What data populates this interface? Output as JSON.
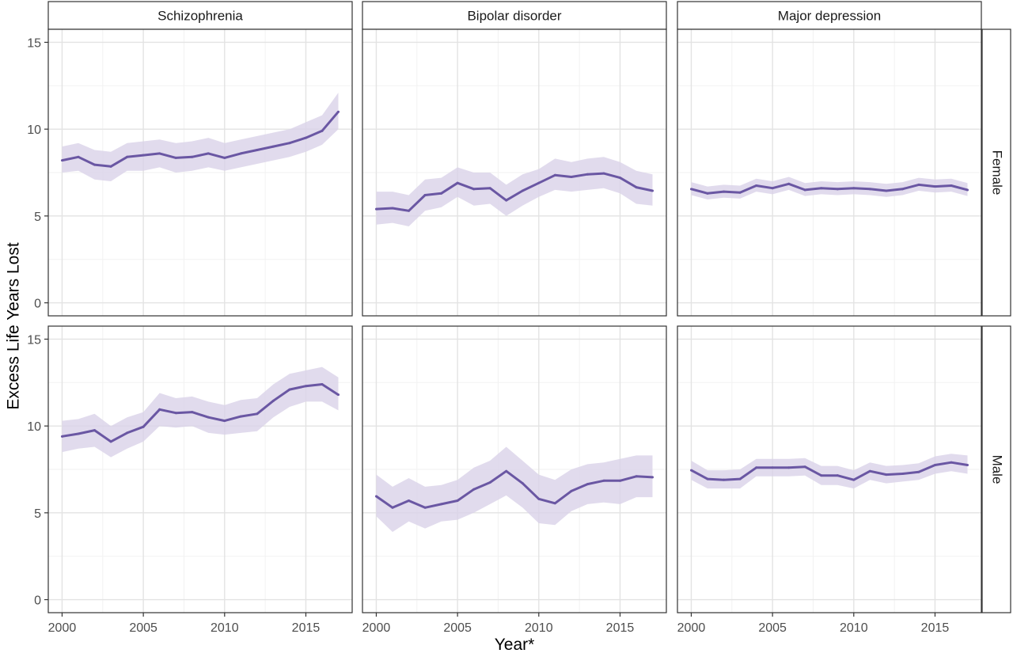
{
  "chart_data": {
    "type": "line",
    "xlabel": "Year*",
    "ylabel": "Excess Life Years Lost",
    "xlim": [
      2000,
      2017
    ],
    "ylim": [
      0,
      15
    ],
    "x_ticks": [
      "2000",
      "2005",
      "2010",
      "2015"
    ],
    "y_ticks": [
      "0",
      "5",
      "10",
      "15"
    ],
    "grid": true,
    "legend": "none",
    "colors": {
      "line": "#6a57a3",
      "band": "#d9d2e8"
    },
    "columns": [
      "Schizophrenia",
      "Bipolar disorder",
      "Major depression"
    ],
    "rows": [
      "Female",
      "Male"
    ],
    "x": [
      2000,
      2001,
      2002,
      2003,
      2004,
      2005,
      2006,
      2007,
      2008,
      2009,
      2010,
      2011,
      2012,
      2013,
      2014,
      2015,
      2016,
      2017
    ],
    "panels": [
      {
        "column": "Schizophrenia",
        "row": "Female",
        "values": [
          8.2,
          8.4,
          7.95,
          7.85,
          8.4,
          8.5,
          8.6,
          8.35,
          8.4,
          8.6,
          8.35,
          8.6,
          8.8,
          9.0,
          9.2,
          9.5,
          9.9,
          11.0
        ],
        "lower": [
          7.5,
          7.6,
          7.1,
          7.0,
          7.6,
          7.6,
          7.8,
          7.5,
          7.6,
          7.8,
          7.6,
          7.8,
          8.0,
          8.2,
          8.4,
          8.7,
          9.1,
          10.0
        ],
        "upper": [
          9.0,
          9.2,
          8.8,
          8.7,
          9.2,
          9.3,
          9.4,
          9.2,
          9.3,
          9.5,
          9.2,
          9.4,
          9.6,
          9.8,
          10.0,
          10.4,
          10.8,
          12.1
        ]
      },
      {
        "column": "Bipolar disorder",
        "row": "Female",
        "values": [
          5.4,
          5.45,
          5.3,
          6.2,
          6.3,
          6.9,
          6.55,
          6.6,
          5.9,
          6.45,
          6.9,
          7.35,
          7.25,
          7.4,
          7.45,
          7.2,
          6.65,
          6.45
        ],
        "lower": [
          4.5,
          4.6,
          4.4,
          5.3,
          5.5,
          6.1,
          5.6,
          5.7,
          5.0,
          5.6,
          6.1,
          6.5,
          6.4,
          6.5,
          6.6,
          6.3,
          5.7,
          5.6
        ],
        "upper": [
          6.4,
          6.4,
          6.2,
          7.1,
          7.2,
          7.8,
          7.5,
          7.5,
          6.8,
          7.4,
          7.7,
          8.3,
          8.1,
          8.3,
          8.4,
          8.1,
          7.6,
          7.4
        ]
      },
      {
        "column": "Major depression",
        "row": "Female",
        "values": [
          6.55,
          6.3,
          6.4,
          6.35,
          6.75,
          6.6,
          6.85,
          6.5,
          6.6,
          6.55,
          6.6,
          6.55,
          6.45,
          6.55,
          6.8,
          6.7,
          6.75,
          6.5
        ],
        "lower": [
          6.2,
          5.95,
          6.05,
          6.0,
          6.4,
          6.25,
          6.5,
          6.15,
          6.25,
          6.2,
          6.25,
          6.2,
          6.1,
          6.2,
          6.45,
          6.35,
          6.4,
          6.15
        ],
        "upper": [
          6.95,
          6.7,
          6.8,
          6.75,
          7.15,
          7.0,
          7.25,
          6.9,
          7.0,
          6.95,
          7.0,
          6.95,
          6.85,
          6.95,
          7.2,
          7.1,
          7.15,
          6.9
        ]
      },
      {
        "column": "Schizophrenia",
        "row": "Male",
        "values": [
          9.4,
          9.55,
          9.75,
          9.1,
          9.6,
          9.95,
          10.95,
          10.75,
          10.8,
          10.5,
          10.3,
          10.55,
          10.7,
          11.45,
          12.1,
          12.3,
          12.4,
          11.8
        ],
        "lower": [
          8.5,
          8.7,
          8.8,
          8.2,
          8.7,
          9.1,
          10.0,
          9.9,
          10.0,
          9.6,
          9.5,
          9.6,
          9.7,
          10.5,
          11.1,
          11.4,
          11.4,
          10.9
        ],
        "upper": [
          10.3,
          10.4,
          10.7,
          10.0,
          10.5,
          10.8,
          11.9,
          11.6,
          11.7,
          11.4,
          11.2,
          11.5,
          11.6,
          12.4,
          13.0,
          13.2,
          13.4,
          12.8
        ]
      },
      {
        "column": "Bipolar disorder",
        "row": "Male",
        "values": [
          5.95,
          5.3,
          5.7,
          5.3,
          5.5,
          5.7,
          6.35,
          6.75,
          7.4,
          6.7,
          5.8,
          5.55,
          6.25,
          6.65,
          6.85,
          6.85,
          7.1,
          7.05
        ],
        "lower": [
          4.8,
          3.9,
          4.5,
          4.1,
          4.5,
          4.6,
          5.0,
          5.5,
          6.0,
          5.3,
          4.4,
          4.3,
          5.1,
          5.5,
          5.6,
          5.5,
          5.9,
          5.9
        ],
        "upper": [
          7.2,
          6.5,
          7.0,
          6.5,
          6.6,
          6.9,
          7.6,
          8.0,
          8.8,
          8.0,
          7.2,
          6.9,
          7.5,
          7.8,
          7.9,
          8.1,
          8.3,
          8.3
        ]
      },
      {
        "column": "Major depression",
        "row": "Male",
        "values": [
          7.45,
          6.95,
          6.9,
          6.95,
          7.6,
          7.6,
          7.6,
          7.65,
          7.15,
          7.15,
          6.9,
          7.4,
          7.2,
          7.25,
          7.35,
          7.75,
          7.9,
          7.75
        ],
        "lower": [
          6.9,
          6.4,
          6.4,
          6.4,
          7.1,
          7.1,
          7.1,
          7.15,
          6.6,
          6.6,
          6.4,
          6.9,
          6.7,
          6.8,
          6.9,
          7.25,
          7.4,
          7.25
        ],
        "upper": [
          8.0,
          7.45,
          7.45,
          7.5,
          8.1,
          8.1,
          8.1,
          8.15,
          7.7,
          7.7,
          7.45,
          7.9,
          7.7,
          7.75,
          7.85,
          8.25,
          8.4,
          8.3
        ]
      }
    ]
  }
}
